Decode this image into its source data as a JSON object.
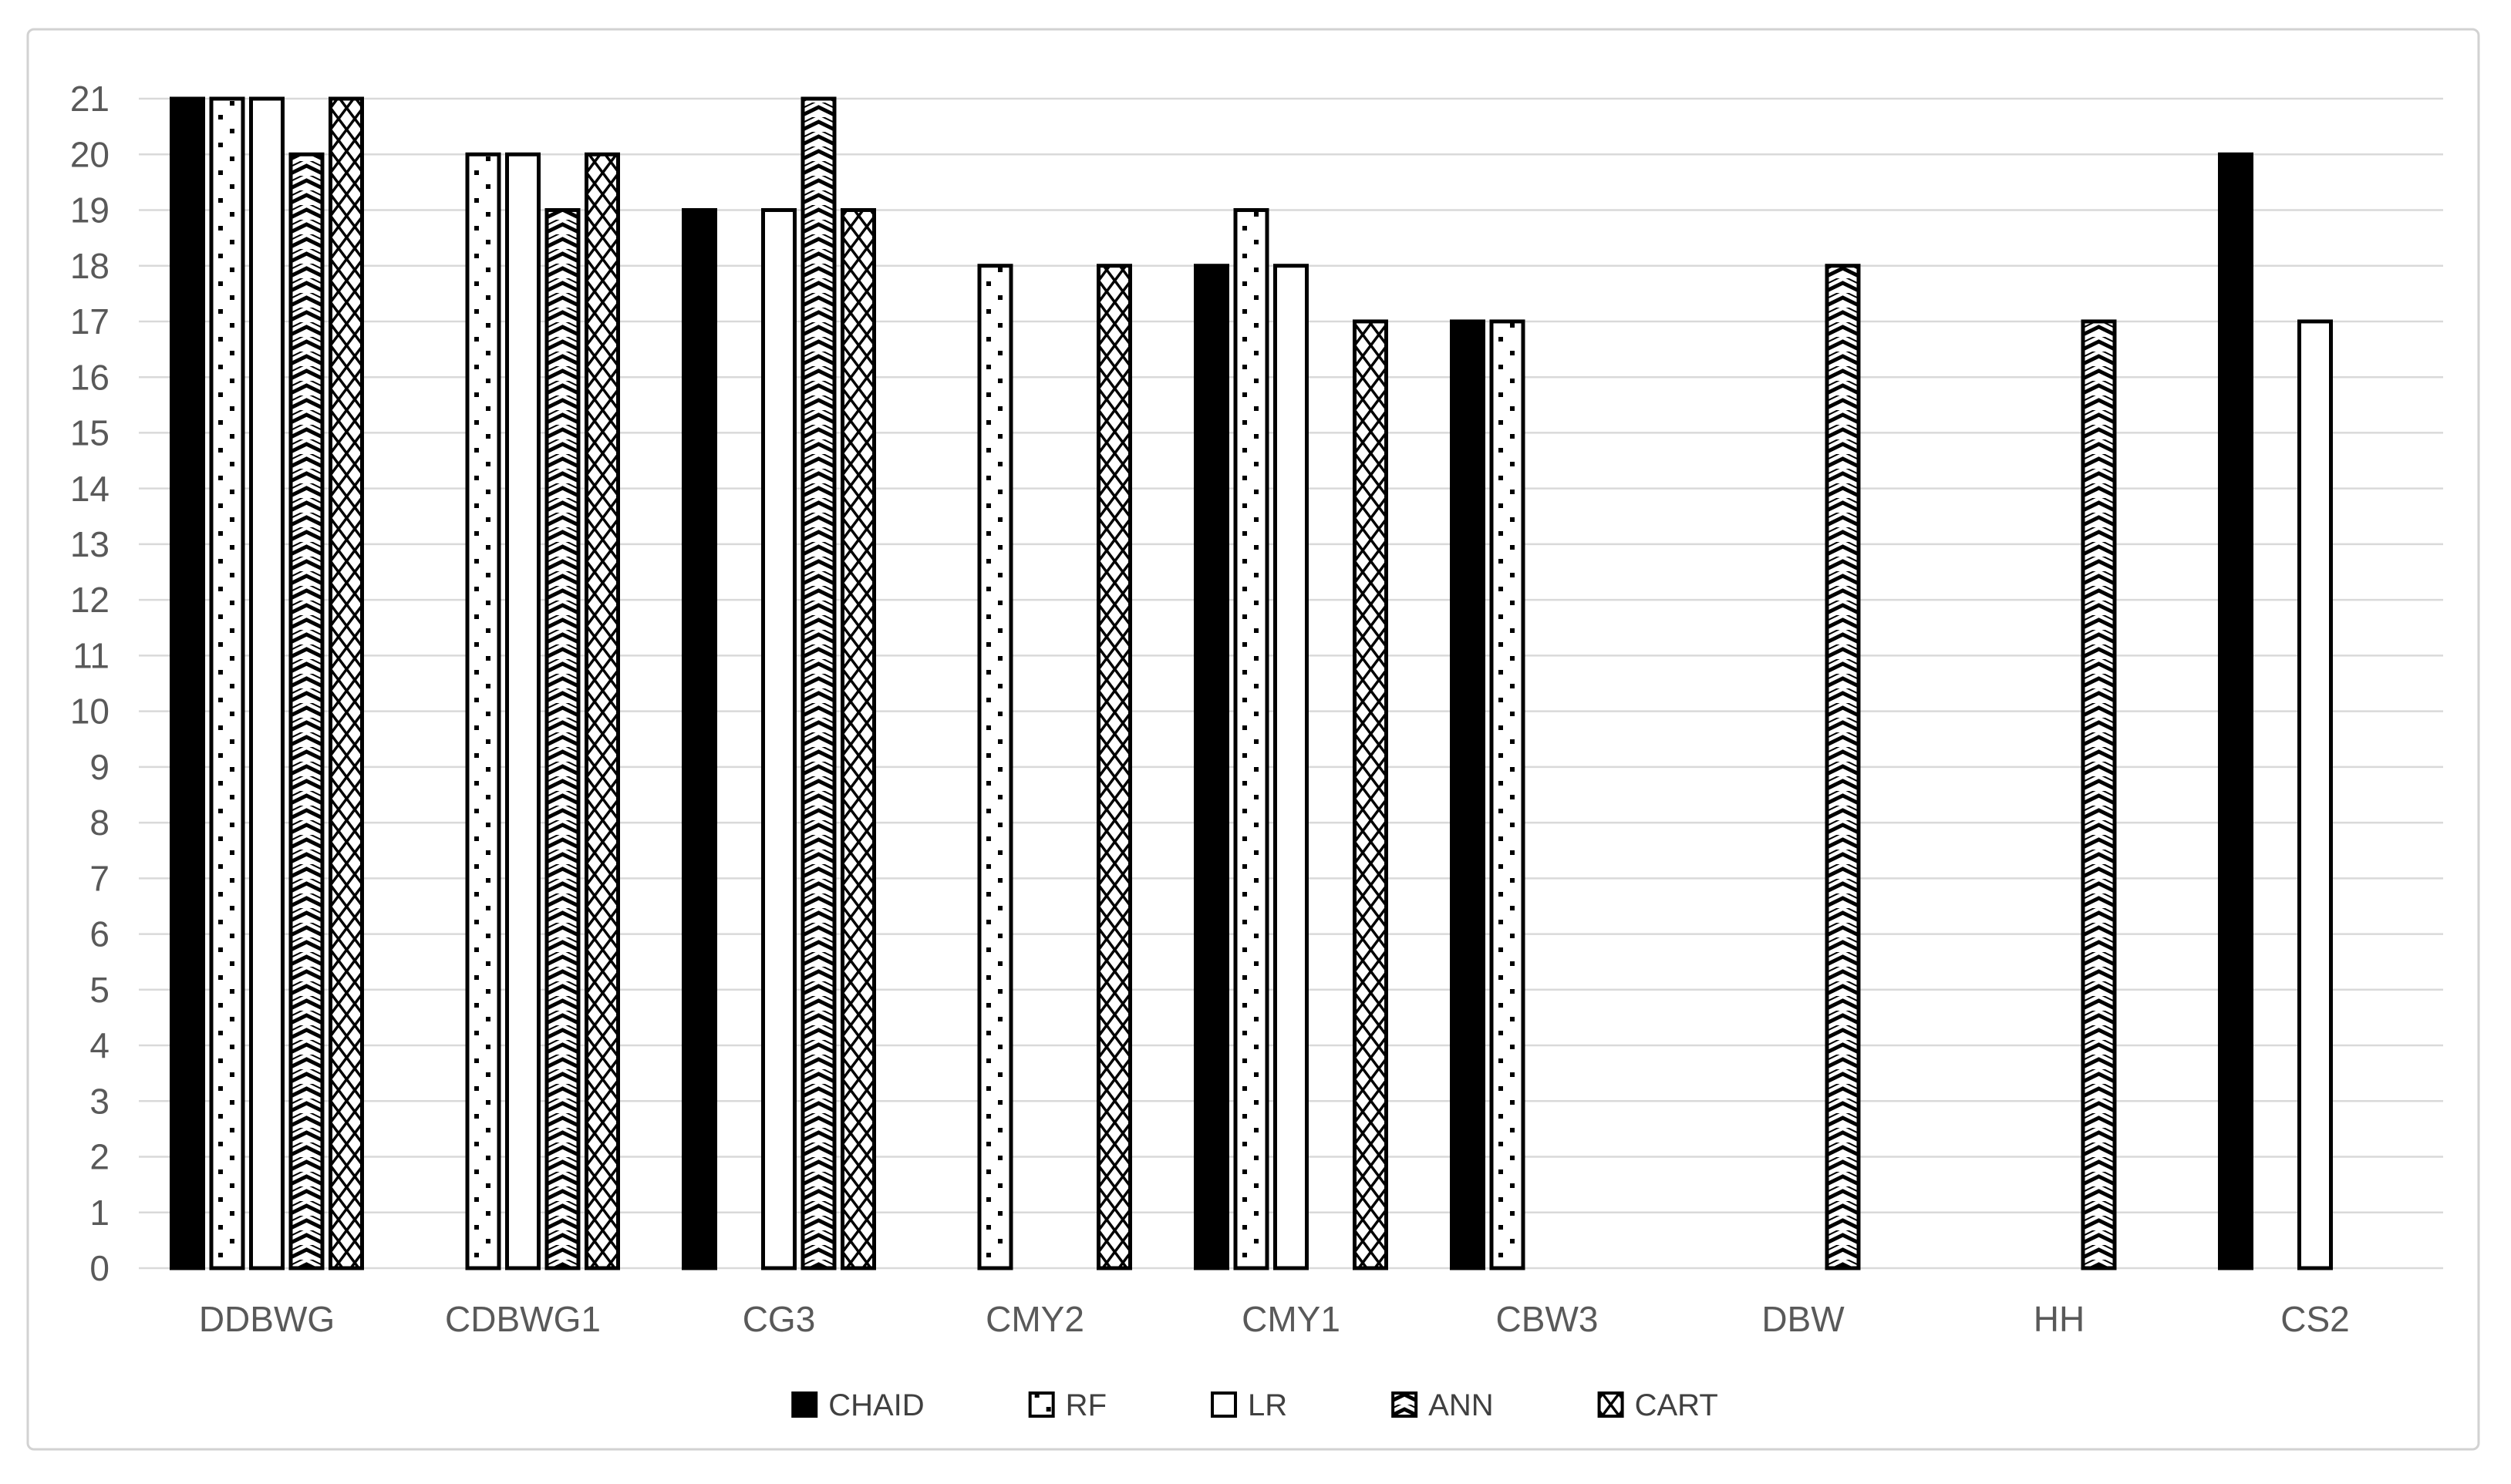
{
  "chart_data": {
    "type": "bar",
    "title": "",
    "xlabel": "",
    "ylabel": "",
    "categories": [
      "DDBWG",
      "CDBWG1",
      "CG3",
      "CMY2",
      "CMY1",
      "CBW3",
      "DBW",
      "HH",
      "CS2"
    ],
    "series": [
      {
        "name": "CHAID",
        "pattern": "solid-black",
        "values": [
          21,
          null,
          19,
          null,
          18,
          17,
          null,
          null,
          20
        ]
      },
      {
        "name": "RF",
        "pattern": "dotted",
        "values": [
          21,
          20,
          null,
          18,
          19,
          17,
          null,
          null,
          null
        ]
      },
      {
        "name": "LR",
        "pattern": "white-outline",
        "values": [
          21,
          20,
          19,
          null,
          18,
          null,
          null,
          null,
          17
        ]
      },
      {
        "name": "ANN",
        "pattern": "chevron",
        "values": [
          20,
          19,
          21,
          null,
          null,
          null,
          18,
          17,
          null
        ]
      },
      {
        "name": "CART",
        "pattern": "crosshatch",
        "values": [
          21,
          20,
          19,
          18,
          17,
          null,
          null,
          null,
          null
        ]
      }
    ],
    "ylim": [
      0,
      21
    ],
    "ytick_step": 1,
    "yticks": [
      0,
      1,
      2,
      3,
      4,
      5,
      6,
      7,
      8,
      9,
      10,
      11,
      12,
      13,
      14,
      15,
      16,
      17,
      18,
      19,
      20,
      21
    ],
    "grid": true,
    "legend_position": "bottom-center",
    "colors": {
      "bar_fill": "#000000",
      "bar_outline": "#000000",
      "pattern_background": "#ffffff",
      "gridline": "#d9d9d9",
      "axis_label": "#595959",
      "legend_text": "#404040",
      "figure_border": "#d2d2d2",
      "background": "#ffffff"
    }
  }
}
